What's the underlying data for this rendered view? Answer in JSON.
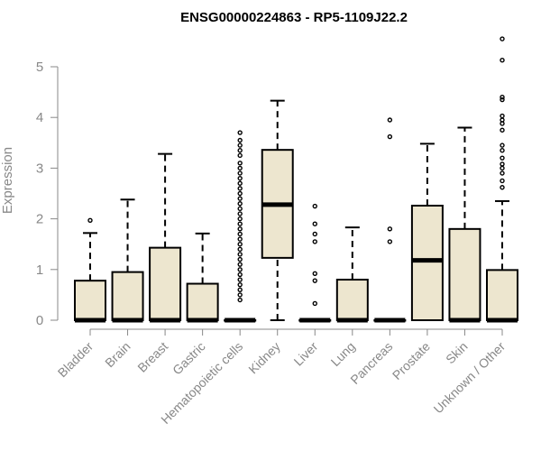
{
  "chart_data": {
    "type": "boxplot",
    "title": "ENSG00000224863 - RP5-1109J22.2",
    "ylabel": "Expression",
    "xlabel": "",
    "ylim": [
      0,
      5.6
    ],
    "yticks": [
      0,
      1,
      2,
      3,
      4,
      5
    ],
    "colors": {
      "box_fill": "#ede6cf",
      "stroke": "#000000",
      "axis_text": "#888888"
    },
    "categories": [
      "Bladder",
      "Brain",
      "Breast",
      "Gastric",
      "Hematopoietic cells",
      "Kidney",
      "Liver",
      "Lung",
      "Pancreas",
      "Prostate",
      "Skin",
      "Unknown / Other"
    ],
    "boxes": [
      {
        "q1": 0,
        "median": 0,
        "q3": 0.78,
        "whisker_low": 0,
        "whisker_high": 1.72,
        "outliers": [
          1.97
        ]
      },
      {
        "q1": 0,
        "median": 0,
        "q3": 0.95,
        "whisker_low": 0,
        "whisker_high": 2.38,
        "outliers": []
      },
      {
        "q1": 0,
        "median": 0,
        "q3": 1.43,
        "whisker_low": 0,
        "whisker_high": 3.28,
        "outliers": []
      },
      {
        "q1": 0,
        "median": 0,
        "q3": 0.72,
        "whisker_low": 0,
        "whisker_high": 1.71,
        "outliers": []
      },
      {
        "q1": 0,
        "median": 0,
        "q3": 0,
        "whisker_low": 0,
        "whisker_high": 0,
        "outliers": [
          0.4,
          0.5,
          0.6,
          0.7,
          0.8,
          0.9,
          1.0,
          1.1,
          1.2,
          1.3,
          1.4,
          1.5,
          1.6,
          1.7,
          1.8,
          1.9,
          2.0,
          2.1,
          2.2,
          2.3,
          2.4,
          2.5,
          2.6,
          2.7,
          2.8,
          2.9,
          3.0,
          3.1,
          3.25,
          3.35,
          3.45,
          3.55,
          3.7
        ]
      },
      {
        "q1": 1.23,
        "median": 2.28,
        "q3": 3.36,
        "whisker_low": 0,
        "whisker_high": 4.33,
        "outliers": []
      },
      {
        "q1": 0,
        "median": 0,
        "q3": 0,
        "whisker_low": 0,
        "whisker_high": 0,
        "outliers": [
          0.33,
          0.78,
          0.92,
          1.55,
          1.7,
          1.9,
          2.25
        ]
      },
      {
        "q1": 0,
        "median": 0,
        "q3": 0.8,
        "whisker_low": 0,
        "whisker_high": 1.83,
        "outliers": []
      },
      {
        "q1": 0,
        "median": 0,
        "q3": 0,
        "whisker_low": 0,
        "whisker_high": 0,
        "outliers": [
          1.55,
          1.8,
          3.62,
          3.95
        ]
      },
      {
        "q1": 0,
        "median": 1.18,
        "q3": 2.26,
        "whisker_low": 0,
        "whisker_high": 3.48,
        "outliers": []
      },
      {
        "q1": 0,
        "median": 0,
        "q3": 1.8,
        "whisker_low": 0,
        "whisker_high": 3.8,
        "outliers": []
      },
      {
        "q1": 0,
        "median": 0,
        "q3": 0.99,
        "whisker_low": 0,
        "whisker_high": 2.35,
        "outliers": [
          2.62,
          2.75,
          2.9,
          3.0,
          3.08,
          3.2,
          3.35,
          3.45,
          3.75,
          3.88,
          3.95,
          4.03,
          4.35,
          4.4,
          5.13,
          5.55
        ]
      }
    ]
  }
}
